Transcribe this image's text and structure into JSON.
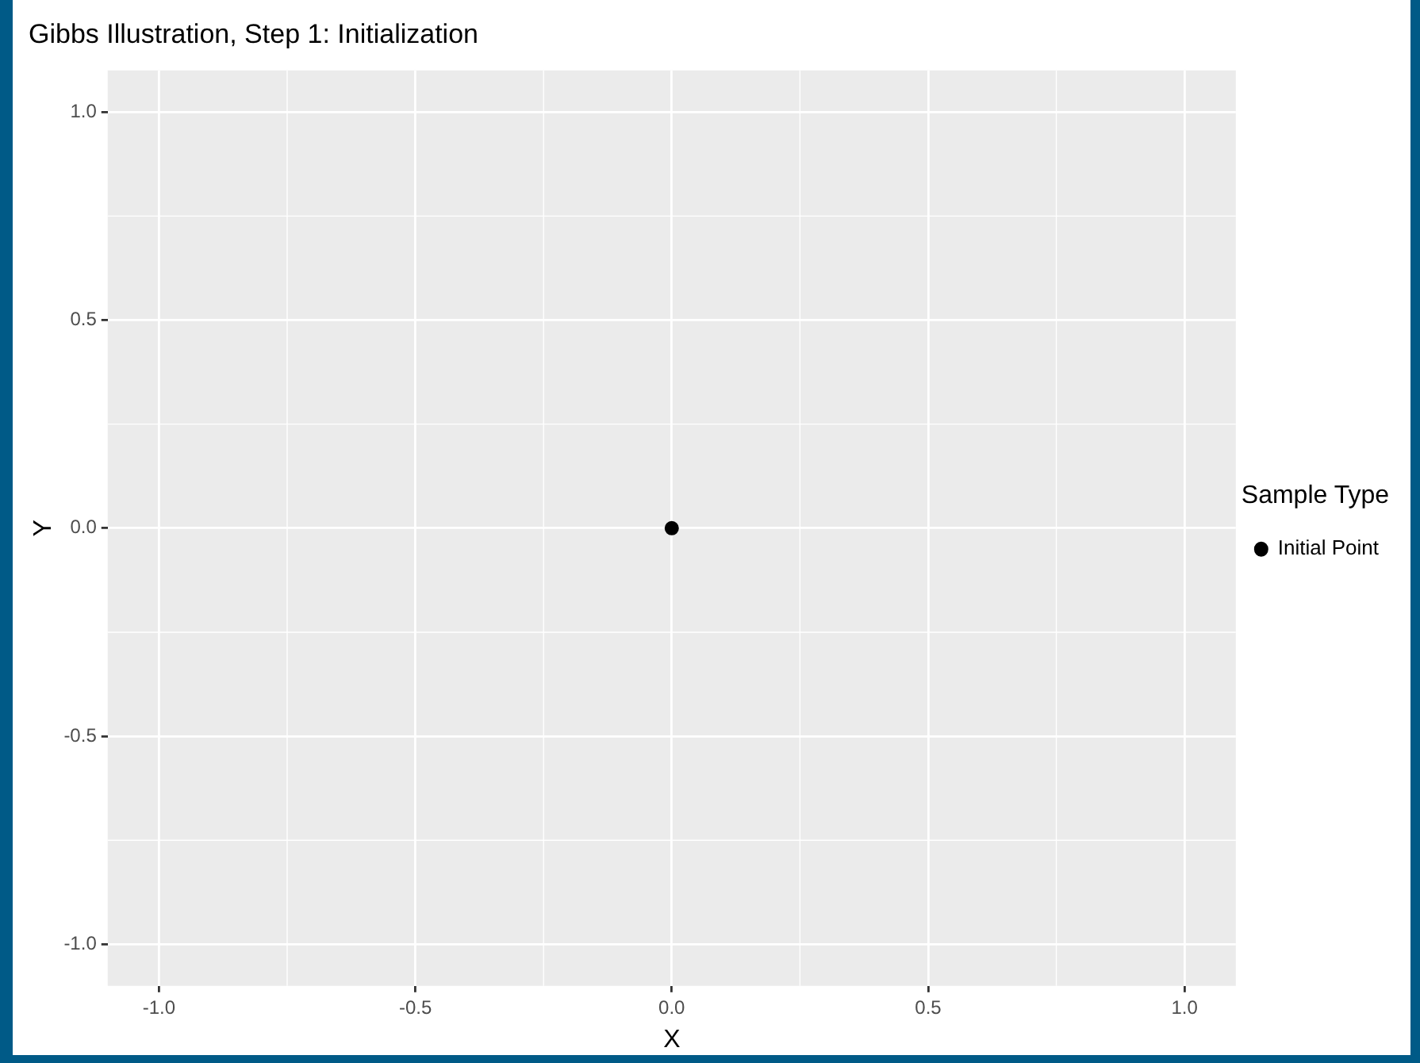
{
  "chart_data": {
    "type": "scatter",
    "title": "Gibbs Illustration, Step 1: Initialization",
    "xlabel": "X",
    "ylabel": "Y",
    "legend_title": "Sample Type",
    "series": [
      {
        "name": "Initial Point",
        "color": "#000000",
        "x": [
          0
        ],
        "values": [
          0
        ]
      }
    ],
    "xlim": [
      -1.1,
      1.1
    ],
    "ylim": [
      -1.1,
      1.1
    ],
    "xticks": [
      {
        "value": -1,
        "label": "-1.0"
      },
      -0.5,
      {
        "value": 0,
        "label": "0.0"
      },
      0.5,
      {
        "value": 1,
        "label": "1.0"
      }
    ],
    "yticks": [
      {
        "value": -1,
        "label": "-1.0"
      },
      -0.5,
      {
        "value": 0,
        "label": "0.0"
      },
      0.5,
      {
        "value": 1,
        "label": "1.0"
      }
    ],
    "grid": true,
    "legend": "right",
    "marker": "circle"
  }
}
